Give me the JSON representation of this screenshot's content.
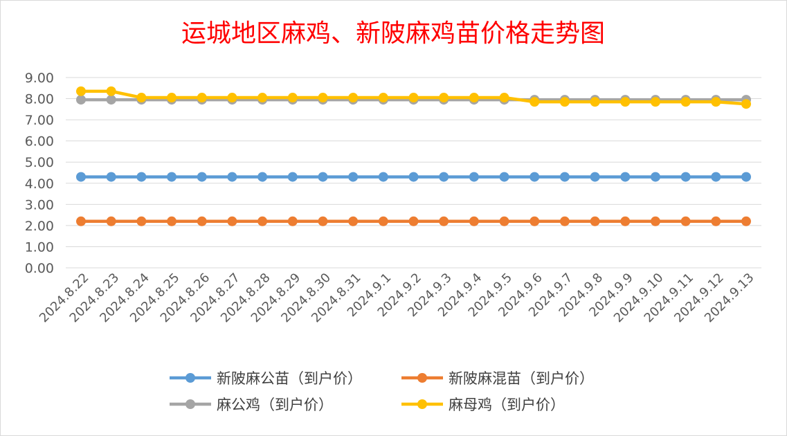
{
  "chart_data": {
    "type": "line",
    "title": "运城地区麻鸡、新陂麻鸡苗价格走势图",
    "categories": [
      "2024.8.22",
      "2024.8.23",
      "2024.8.24",
      "2024.8.25",
      "2024.8.26",
      "2024.8.27",
      "2024.8.28",
      "2024.8.29",
      "2024.8.30",
      "2024.8.31",
      "2024.9.1",
      "2024.9.2",
      "2024.9.3",
      "2024.9.4",
      "2024.9.5",
      "2024.9.6",
      "2024.9.7",
      "2024.9.8",
      "2024.9.9",
      "2024.9.10",
      "2024.9.11",
      "2024.9.12",
      "2024.9.13"
    ],
    "yticks": [
      "0.00",
      "1.00",
      "2.00",
      "3.00",
      "4.00",
      "5.00",
      "6.00",
      "7.00",
      "8.00",
      "9.00"
    ],
    "ylim": [
      0,
      9
    ],
    "grid": true,
    "legend_position": "bottom",
    "series": [
      {
        "name": "新陂麻公苗（到户价）",
        "color": "#5b9bd5",
        "values": [
          4.3,
          4.3,
          4.3,
          4.3,
          4.3,
          4.3,
          4.3,
          4.3,
          4.3,
          4.3,
          4.3,
          4.3,
          4.3,
          4.3,
          4.3,
          4.3,
          4.3,
          4.3,
          4.3,
          4.3,
          4.3,
          4.3,
          4.3
        ]
      },
      {
        "name": "新陂麻混苗（到户价）",
        "color": "#ed7d31",
        "values": [
          2.2,
          2.2,
          2.2,
          2.2,
          2.2,
          2.2,
          2.2,
          2.2,
          2.2,
          2.2,
          2.2,
          2.2,
          2.2,
          2.2,
          2.2,
          2.2,
          2.2,
          2.2,
          2.2,
          2.2,
          2.2,
          2.2,
          2.2
        ]
      },
      {
        "name": "麻公鸡（到户价）",
        "color": "#a5a5a5",
        "values": [
          7.95,
          7.95,
          7.95,
          7.95,
          7.95,
          7.95,
          7.95,
          7.95,
          7.95,
          7.95,
          7.95,
          7.95,
          7.95,
          7.95,
          7.95,
          7.95,
          7.95,
          7.95,
          7.95,
          7.95,
          7.95,
          7.95,
          7.95
        ]
      },
      {
        "name": "麻母鸡（到户价）",
        "color": "#ffc000",
        "values": [
          8.35,
          8.35,
          8.05,
          8.05,
          8.05,
          8.05,
          8.05,
          8.05,
          8.05,
          8.05,
          8.05,
          8.05,
          8.05,
          8.05,
          8.05,
          7.85,
          7.85,
          7.85,
          7.85,
          7.85,
          7.85,
          7.85,
          7.75
        ]
      }
    ]
  }
}
